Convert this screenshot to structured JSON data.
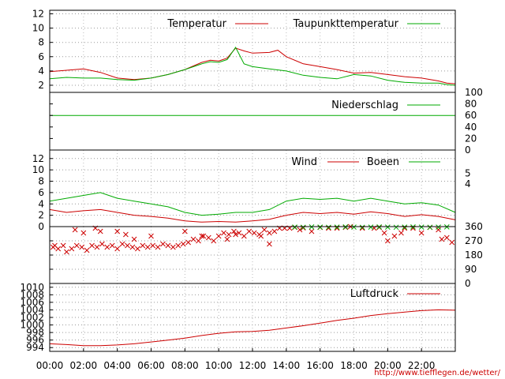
{
  "chart_data": [
    {
      "type": "line",
      "panel": "temperature",
      "ylim": [
        1,
        12.5
      ],
      "yticks": [
        "2",
        "4",
        "6",
        "8",
        "10",
        "12"
      ],
      "grid": true,
      "legend": "top-right",
      "series": [
        {
          "name": "Temperatur",
          "color": "#cc0000",
          "x": [
            0,
            1,
            2,
            3,
            4,
            5,
            6,
            7,
            8,
            9,
            9.5,
            10,
            10.5,
            11,
            11.5,
            12,
            13,
            13.5,
            14,
            15,
            16,
            17,
            18,
            19,
            20,
            21,
            22,
            23,
            23.5,
            24
          ],
          "y": [
            3.9,
            4.1,
            4.3,
            3.8,
            3.0,
            2.8,
            3.0,
            3.5,
            4.2,
            5.2,
            5.5,
            5.4,
            5.8,
            7.2,
            6.8,
            6.5,
            6.6,
            6.9,
            6.0,
            5.0,
            4.6,
            4.2,
            3.7,
            3.8,
            3.5,
            3.2,
            3.0,
            2.6,
            2.3,
            2.2
          ]
        },
        {
          "name": "Taupunkttemperatur",
          "color": "#00aa00",
          "x": [
            0,
            1,
            2,
            3,
            4,
            5,
            6,
            7,
            8,
            9,
            9.5,
            10,
            10.5,
            11,
            11.5,
            12,
            13,
            14,
            15,
            16,
            17,
            18,
            19,
            20,
            21,
            22,
            23,
            23.5,
            24
          ],
          "y": [
            2.9,
            3.1,
            3.0,
            3.0,
            2.8,
            2.7,
            3.0,
            3.5,
            4.2,
            5.0,
            5.3,
            5.2,
            5.6,
            7.3,
            5.0,
            4.6,
            4.3,
            4.0,
            3.4,
            3.1,
            2.9,
            3.5,
            3.3,
            2.7,
            2.4,
            2.3,
            2.3,
            2.1,
            2.0
          ]
        }
      ]
    },
    {
      "type": "line",
      "panel": "precipitation",
      "ylim": [
        0,
        100
      ],
      "yticks": [
        "0",
        "20",
        "40",
        "60",
        "80",
        "100"
      ],
      "grid": false,
      "legend": "top-right",
      "series": [
        {
          "name": "Niederschlag",
          "color": "#00aa00",
          "x": [
            0,
            24
          ],
          "y": [
            60,
            60
          ]
        }
      ]
    },
    {
      "type": "line",
      "panel": "wind",
      "ylim": [
        0,
        13.5
      ],
      "yticks": [
        "0",
        "2",
        "4",
        "6",
        "8",
        "10",
        "12"
      ],
      "right_ticks": [
        "4",
        "5"
      ],
      "grid": true,
      "legend": "top-right",
      "series": [
        {
          "name": "Wind",
          "color": "#cc0000",
          "x": [
            0,
            1,
            2,
            3,
            4,
            5,
            6,
            7,
            8,
            9,
            10,
            11,
            12,
            13,
            14,
            15,
            16,
            17,
            18,
            19,
            20,
            21,
            22,
            23,
            24
          ],
          "y": [
            3,
            2.5,
            2.8,
            3,
            2.5,
            2,
            1.8,
            1.5,
            1,
            0.8,
            0.9,
            0.8,
            1,
            1.3,
            2,
            2.5,
            2.3,
            2.5,
            2.2,
            2.6,
            2.3,
            1.8,
            2.1,
            1.8,
            1.2
          ]
        },
        {
          "name": "Boeen",
          "color": "#00aa00",
          "x": [
            0,
            1,
            2,
            3,
            4,
            5,
            6,
            7,
            8,
            9,
            10,
            11,
            12,
            13,
            14,
            15,
            16,
            17,
            18,
            19,
            20,
            21,
            22,
            23,
            24
          ],
          "y": [
            4.5,
            5,
            5.5,
            6,
            5,
            4.5,
            4,
            3.5,
            2.5,
            2,
            2.2,
            2.5,
            2.5,
            3,
            4.5,
            5,
            4.8,
            5,
            4.5,
            5,
            4.5,
            4,
            4.2,
            3.8,
            2.5
          ]
        }
      ]
    },
    {
      "type": "scatter",
      "panel": "wind-direction",
      "ylim": [
        0,
        360
      ],
      "yticks": [
        "0",
        "90",
        "180",
        "270",
        "360"
      ],
      "grid": true,
      "series": [
        {
          "name": "",
          "color": "#cc0000",
          "x": [
            0.2,
            0.5,
            0.8,
            1.0,
            1.3,
            1.6,
            1.9,
            2.2,
            2.5,
            2.8,
            3.1,
            3.4,
            3.7,
            4.0,
            4.3,
            4.6,
            4.9,
            5.2,
            5.5,
            5.8,
            6.1,
            6.4,
            6.7,
            7.0,
            7.3,
            7.6,
            7.9,
            8.2,
            8.5,
            8.8,
            9.1,
            9.4,
            9.7,
            10.0,
            10.3,
            10.6,
            10.9,
            11.2,
            11.5,
            11.8,
            12.1,
            12.4,
            12.7,
            13.0,
            13.3,
            13.6,
            13.9,
            14.2,
            14.5,
            15.0,
            16.0,
            17.0,
            17.5,
            18.5,
            19.2,
            19.5,
            20.0,
            20.4,
            21.0,
            22.0,
            23.0,
            23.5,
            23.8,
            1.5,
            2.0,
            3.0,
            4.5,
            6.0,
            10.5,
            12.5,
            2.7,
            5.0,
            8.0,
            11.0,
            0.3,
            14.8,
            16.5,
            20.8,
            22.5,
            4.0,
            9.0,
            13.0,
            21.5,
            15.5,
            17.8,
            19.8,
            23.2
          ],
          "y": [
            230,
            220,
            240,
            200,
            220,
            240,
            230,
            210,
            240,
            230,
            250,
            230,
            240,
            220,
            250,
            240,
            230,
            220,
            240,
            230,
            240,
            230,
            250,
            240,
            230,
            240,
            250,
            260,
            280,
            270,
            300,
            290,
            270,
            300,
            320,
            310,
            330,
            320,
            300,
            330,
            320,
            310,
            340,
            320,
            330,
            350,
            350,
            350,
            355,
            352,
            355,
            350,
            355,
            350,
            350,
            355,
            270,
            300,
            350,
            320,
            340,
            290,
            260,
            340,
            320,
            330,
            310,
            300,
            280,
            300,
            350,
            280,
            330,
            310,
            240,
            340,
            350,
            320,
            355,
            330,
            300,
            250,
            350,
            330,
            360,
            320,
            280
          ]
        },
        {
          "name": "",
          "color": "#00aa00",
          "x": [
            14.5,
            15.0,
            15.5,
            16.0,
            16.5,
            17.0,
            17.5,
            18.0,
            18.5,
            19.0,
            19.5,
            20.0,
            20.5,
            21.0,
            21.5,
            22.0,
            22.5,
            23.0,
            23.5
          ],
          "y": [
            357,
            356,
            358,
            357,
            356,
            357,
            358,
            357,
            356,
            357,
            358,
            357,
            356,
            357,
            358,
            357,
            356,
            357,
            358
          ]
        }
      ]
    },
    {
      "type": "line",
      "panel": "pressure",
      "ylim": [
        993,
        1011
      ],
      "yticks": [
        "994",
        "996",
        "998",
        "1000",
        "1002",
        "1004",
        "1006",
        "1008",
        "1010"
      ],
      "grid": true,
      "legend": "top-right",
      "series": [
        {
          "name": "Luftdruck",
          "color": "#cc0000",
          "x": [
            0,
            1,
            2,
            3,
            4,
            5,
            6,
            7,
            8,
            9,
            10,
            11,
            12,
            13,
            14,
            15,
            16,
            17,
            18,
            19,
            20,
            21,
            22,
            23,
            24
          ],
          "y": [
            995.0,
            994.8,
            994.5,
            994.5,
            994.7,
            995.0,
            995.5,
            996.0,
            996.5,
            997.2,
            997.8,
            998.2,
            998.3,
            998.6,
            999.2,
            999.8,
            1000.5,
            1001.2,
            1001.8,
            1002.5,
            1003.0,
            1003.4,
            1003.8,
            1004.0,
            1003.9
          ]
        }
      ]
    }
  ],
  "x_axis": {
    "range": [
      0,
      24
    ],
    "ticks": [
      "00:00",
      "02:00",
      "04:00",
      "06:00",
      "08:00",
      "10:00",
      "12:00",
      "14:00",
      "16:00",
      "18:00",
      "20:00",
      "22:00"
    ]
  },
  "source_url": "http://www.tiefflegen.de/wetter/"
}
